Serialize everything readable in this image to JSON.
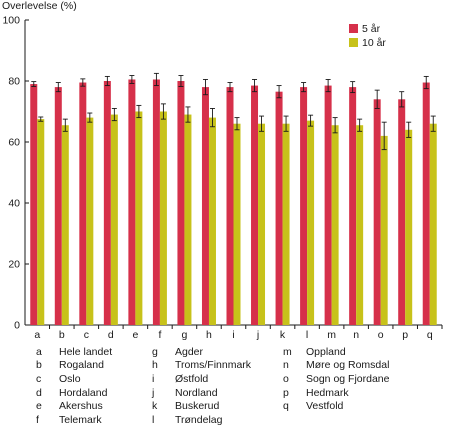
{
  "chart_data": {
    "type": "bar",
    "ylabel": "Overlevelse (%)",
    "ylim": [
      0,
      100
    ],
    "yticks": [
      0,
      20,
      40,
      60,
      80,
      100
    ],
    "categories": [
      "a",
      "b",
      "c",
      "d",
      "e",
      "f",
      "g",
      "h",
      "i",
      "j",
      "k",
      "l",
      "m",
      "n",
      "o",
      "p",
      "q"
    ],
    "series": [
      {
        "name": "5 år",
        "color": "#d6304a",
        "values": [
          79,
          78,
          79.5,
          80,
          80.5,
          80.5,
          80,
          78,
          78,
          78.5,
          76.5,
          78,
          78.5,
          78,
          74,
          74,
          79.5
        ],
        "err": [
          0.8,
          1.5,
          1.2,
          1.5,
          1.3,
          2.0,
          1.8,
          2.5,
          1.5,
          2.0,
          2.0,
          1.5,
          2.0,
          1.8,
          3.0,
          2.5,
          2.0
        ]
      },
      {
        "name": "10 år",
        "color": "#c7c21a",
        "values": [
          67.5,
          65.5,
          68,
          69,
          70,
          70,
          69,
          68,
          66,
          66,
          66,
          67,
          65.5,
          65.5,
          62,
          64,
          66
        ],
        "err": [
          0.7,
          2.0,
          1.5,
          2.0,
          2.0,
          2.5,
          2.5,
          3.0,
          2.0,
          2.5,
          2.5,
          1.8,
          2.5,
          2.0,
          4.5,
          2.5,
          2.5
        ]
      }
    ],
    "legend_position": "top-right",
    "grid": false
  },
  "key": [
    [
      [
        "a",
        "Hele landet"
      ],
      [
        "b",
        "Rogaland"
      ],
      [
        "c",
        "Oslo"
      ],
      [
        "d",
        "Hordaland"
      ],
      [
        "e",
        "Akershus"
      ],
      [
        "f",
        "Telemark"
      ]
    ],
    [
      [
        "g",
        "Agder"
      ],
      [
        "h",
        "Troms/Finnmark"
      ],
      [
        "i",
        "Østfold"
      ],
      [
        "j",
        "Nordland"
      ],
      [
        "k",
        "Buskerud"
      ],
      [
        "l",
        "Trøndelag"
      ]
    ],
    [
      [
        "m",
        "Oppland"
      ],
      [
        "n",
        "Møre og Romsdal"
      ],
      [
        "o",
        "Sogn og Fjordane"
      ],
      [
        "p",
        "Hedmark"
      ],
      [
        "q",
        "Vestfold"
      ]
    ]
  ]
}
